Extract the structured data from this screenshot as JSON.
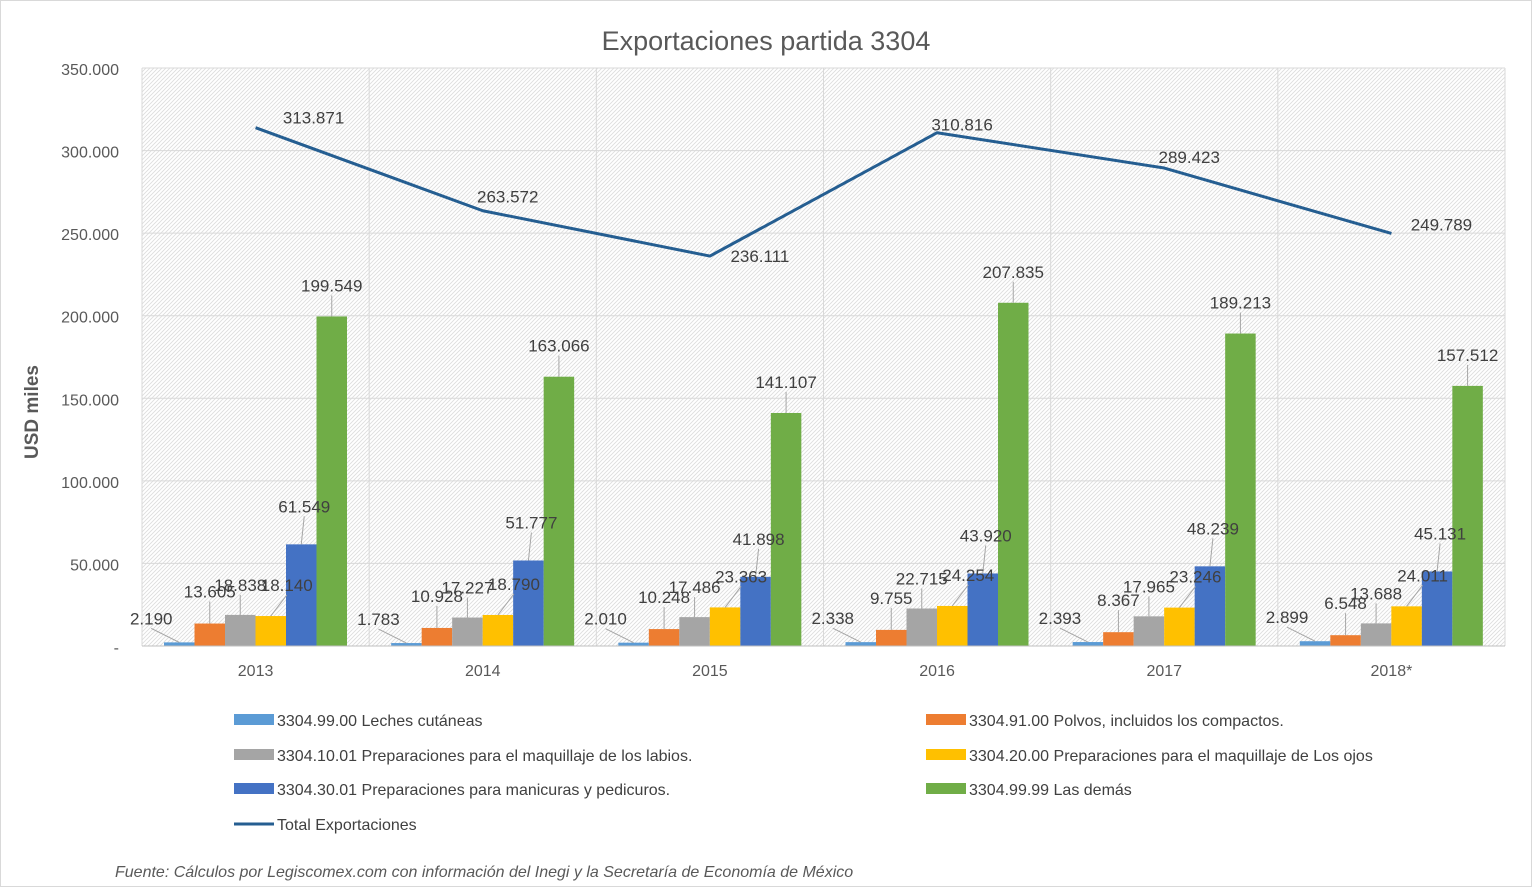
{
  "chart_data": {
    "type": "bar",
    "title": "Exportaciones partida 3304",
    "ylabel": "USD miles",
    "xlabel": "",
    "ylim": [
      0,
      350000
    ],
    "yticks": [
      0,
      50000,
      100000,
      150000,
      200000,
      250000,
      300000,
      350000
    ],
    "ytick_labels": [
      "-",
      "50.000",
      "100.000",
      "150.000",
      "200.000",
      "250.000",
      "300.000",
      "350.000"
    ],
    "grid": true,
    "legend_position": "bottom",
    "categories": [
      "2013",
      "2014",
      "2015",
      "2016",
      "2017",
      "2018*"
    ],
    "series": [
      {
        "name": "3304.99.00 Leches cutáneas",
        "type": "bar",
        "color": "#5B9BD5",
        "values": [
          2190,
          1783,
          2010,
          2338,
          2393,
          2899
        ],
        "labels": [
          "2.190",
          "1.783",
          "2.010",
          "2.338",
          "2.393",
          "2.899"
        ]
      },
      {
        "name": "3304.91.00 Polvos, incluidos los compactos.",
        "type": "bar",
        "color": "#ED7D31",
        "values": [
          13605,
          10928,
          10248,
          9755,
          8367,
          6548
        ],
        "labels": [
          "13.605",
          "10.928",
          "10.248",
          "9.755",
          "8.367",
          "6.548"
        ]
      },
      {
        "name": "3304.10.01 Preparaciones para el maquillaje de los labios.",
        "type": "bar",
        "color": "#A5A5A5",
        "values": [
          18838,
          17227,
          17486,
          22715,
          17965,
          13688
        ],
        "labels": [
          "18.838",
          "17.227",
          "17.486",
          "22.715",
          "17.965",
          "13.688"
        ]
      },
      {
        "name": "3304.20.00  Preparaciones para el maquillaje de Los ojos",
        "type": "bar",
        "color": "#FFC000",
        "values": [
          18140,
          18790,
          23363,
          24254,
          23246,
          24011
        ],
        "labels": [
          "18.140",
          "18.790",
          "23.363",
          "24.254",
          "23.246",
          "24.011"
        ]
      },
      {
        "name": "3304.30.01 Preparaciones para manicuras y pedicuros.",
        "type": "bar",
        "color": "#4472C4",
        "values": [
          61549,
          51777,
          41898,
          43920,
          48239,
          45131
        ],
        "labels": [
          "61.549",
          "51.777",
          "41.898",
          "43.920",
          "48.239",
          "45.131"
        ]
      },
      {
        "name": "3304.99.99 Las demás",
        "type": "bar",
        "color": "#70AD47",
        "values": [
          199549,
          163066,
          141107,
          207835,
          189213,
          157512
        ],
        "labels": [
          "199.549",
          "163.066",
          "141.107",
          "207.835",
          "189.213",
          "157.512"
        ]
      },
      {
        "name": "Total  Exportaciones",
        "type": "line",
        "color": "#255E91",
        "values": [
          313871,
          263572,
          236111,
          310816,
          289423,
          249789
        ],
        "labels": [
          "313.871",
          "263.572",
          "236.111",
          "310.816",
          "289.423",
          "249.789"
        ]
      }
    ],
    "source_note": "Fuente: Cálculos por Legiscomex.com con información del Inegi y  la Secretaría de Economía de México"
  }
}
